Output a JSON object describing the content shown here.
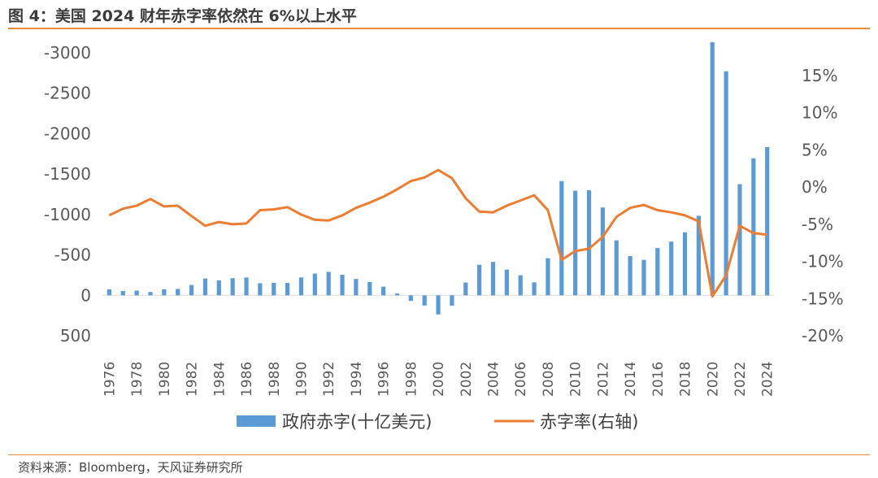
{
  "title": "图 4：美国 2024 财年赤字率依然在 6%以上水平",
  "source": "资料来源：Bloomberg，天风证券研究所",
  "colors": {
    "bar": "#5b9bd5",
    "line": "#ed7d31",
    "rule": "#e88a3a"
  },
  "chart_data": {
    "type": "bar+line",
    "x": [
      1976,
      1977,
      1978,
      1979,
      1980,
      1981,
      1982,
      1983,
      1984,
      1985,
      1986,
      1987,
      1988,
      1989,
      1990,
      1991,
      1992,
      1993,
      1994,
      1995,
      1996,
      1997,
      1998,
      1999,
      2000,
      2001,
      2002,
      2003,
      2004,
      2005,
      2006,
      2007,
      2008,
      2009,
      2010,
      2011,
      2012,
      2013,
      2014,
      2015,
      2016,
      2017,
      2018,
      2019,
      2020,
      2021,
      2022,
      2023,
      2024
    ],
    "x_tick_labels": [
      "1976",
      "1978",
      "1980",
      "1982",
      "1984",
      "1986",
      "1988",
      "1990",
      "1992",
      "1994",
      "1996",
      "1998",
      "2000",
      "2002",
      "2004",
      "2006",
      "2008",
      "2010",
      "2012",
      "2014",
      "2016",
      "2018",
      "2020",
      "2022",
      "2024"
    ],
    "series": [
      {
        "name": "政府赤字(十亿美元)",
        "type": "bar",
        "axis": "left",
        "values": [
          -74,
          -54,
          -59,
          -41,
          -74,
          -79,
          -128,
          -208,
          -185,
          -212,
          -221,
          -150,
          -155,
          -153,
          -221,
          -269,
          -290,
          -255,
          -203,
          -164,
          -107,
          -22,
          69,
          126,
          236,
          128,
          -158,
          -378,
          -413,
          -318,
          -248,
          -161,
          -459,
          -1413,
          -1294,
          -1300,
          -1087,
          -680,
          -485,
          -439,
          -585,
          -665,
          -779,
          -984,
          -3132,
          -2772,
          -1375,
          -1695,
          -1833
        ]
      },
      {
        "name": "赤字率(右轴)",
        "type": "line",
        "axis": "right",
        "values": [
          -3.8,
          -2.9,
          -2.5,
          -1.6,
          -2.6,
          -2.5,
          -3.9,
          -5.2,
          -4.7,
          -5.0,
          -4.9,
          -3.1,
          -3.0,
          -2.7,
          -3.7,
          -4.4,
          -4.5,
          -3.8,
          -2.8,
          -2.1,
          -1.3,
          -0.3,
          0.8,
          1.3,
          2.3,
          1.2,
          -1.5,
          -3.3,
          -3.4,
          -2.5,
          -1.8,
          -1.1,
          -3.1,
          -9.8,
          -8.6,
          -8.3,
          -6.7,
          -4.0,
          -2.8,
          -2.4,
          -3.1,
          -3.4,
          -3.8,
          -4.6,
          -14.7,
          -11.9,
          -5.2,
          -6.2,
          -6.4
        ]
      }
    ],
    "left_axis": {
      "ticks": [
        -3000,
        -2500,
        -2000,
        -1500,
        -1000,
        -500,
        0,
        500
      ],
      "ylim": [
        -3000,
        500
      ],
      "inverted": true
    },
    "right_axis": {
      "ticks": [
        "15%",
        "10%",
        "5%",
        "0%",
        "-5%",
        "-10%",
        "-15%",
        "-20%"
      ],
      "ylim": [
        -20,
        15
      ]
    },
    "legend_position": "bottom-center"
  }
}
